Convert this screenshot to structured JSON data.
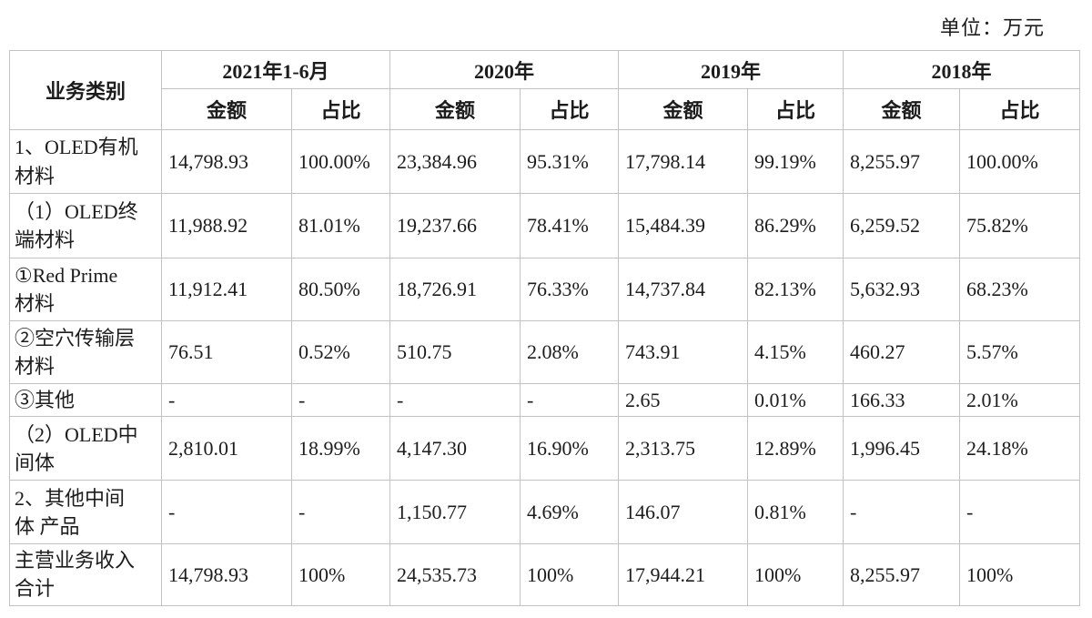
{
  "unit_label": "单位：万元",
  "table": {
    "category_header": "业务类别",
    "year_headers": [
      "2021年1-6月",
      "2020年",
      "2019年",
      "2018年"
    ],
    "sub_headers": [
      "金额",
      "占比"
    ],
    "rows": [
      {
        "label": "1、OLED有机\n材料",
        "values": [
          "14,798.93",
          "100.00%",
          "23,384.96",
          "95.31%",
          "17,798.14",
          "99.19%",
          "8,255.97",
          "100.00%"
        ]
      },
      {
        "label": "（1）OLED终\n端材料",
        "values": [
          "11,988.92",
          "81.01%",
          "19,237.66",
          "78.41%",
          "15,484.39",
          "86.29%",
          "6,259.52",
          "75.82%"
        ]
      },
      {
        "label": "①Red Prime\n材料",
        "values": [
          "11,912.41",
          "80.50%",
          "18,726.91",
          "76.33%",
          "14,737.84",
          "82.13%",
          "5,632.93",
          "68.23%"
        ]
      },
      {
        "label": "②空穴传输层\n材料",
        "values": [
          "76.51",
          "0.52%",
          "510.75",
          "2.08%",
          "743.91",
          "4.15%",
          "460.27",
          "5.57%"
        ]
      },
      {
        "label": "③其他",
        "values": [
          "-",
          "-",
          "-",
          "-",
          "2.65",
          "0.01%",
          "166.33",
          "2.01%"
        ]
      },
      {
        "label": "（2）OLED中\n间体",
        "values": [
          "2,810.01",
          "18.99%",
          "4,147.30",
          "16.90%",
          "2,313.75",
          "12.89%",
          "1,996.45",
          "24.18%"
        ]
      },
      {
        "label": "2、其他中间\n体 产品",
        "values": [
          "-",
          "-",
          "1,150.77",
          "4.69%",
          "146.07",
          "0.81%",
          "-",
          "-"
        ]
      },
      {
        "label": "主营业务收入\n合计",
        "values": [
          "14,798.93",
          "100%",
          "24,535.73",
          "100%",
          "17,944.21",
          "100%",
          "8,255.97",
          "100%"
        ]
      }
    ]
  }
}
